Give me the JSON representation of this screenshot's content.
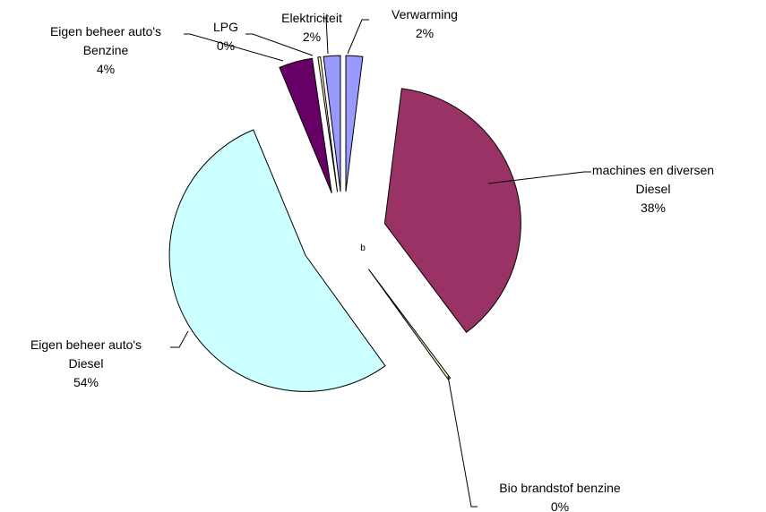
{
  "chart_data": {
    "type": "pie",
    "categories": [
      "Verwarming",
      "machines en diversen\nDiesel",
      "Bio brandstof benzine",
      "Eigen beheer auto's\nDiesel",
      "Eigen beheer auto's\nBenzine",
      "LPG",
      "Elektriciteit"
    ],
    "values": [
      2,
      38,
      0.3,
      54,
      4,
      0.3,
      2
    ],
    "value_labels": [
      "2%",
      "38%",
      "0%",
      "54%",
      "4%",
      "0%",
      "2%"
    ],
    "colors": [
      "#9999ff",
      "#993366",
      "#ffffcc",
      "#ccffff",
      "#660066",
      "#ffffcc",
      "#9999ff"
    ],
    "annotation": "b"
  }
}
